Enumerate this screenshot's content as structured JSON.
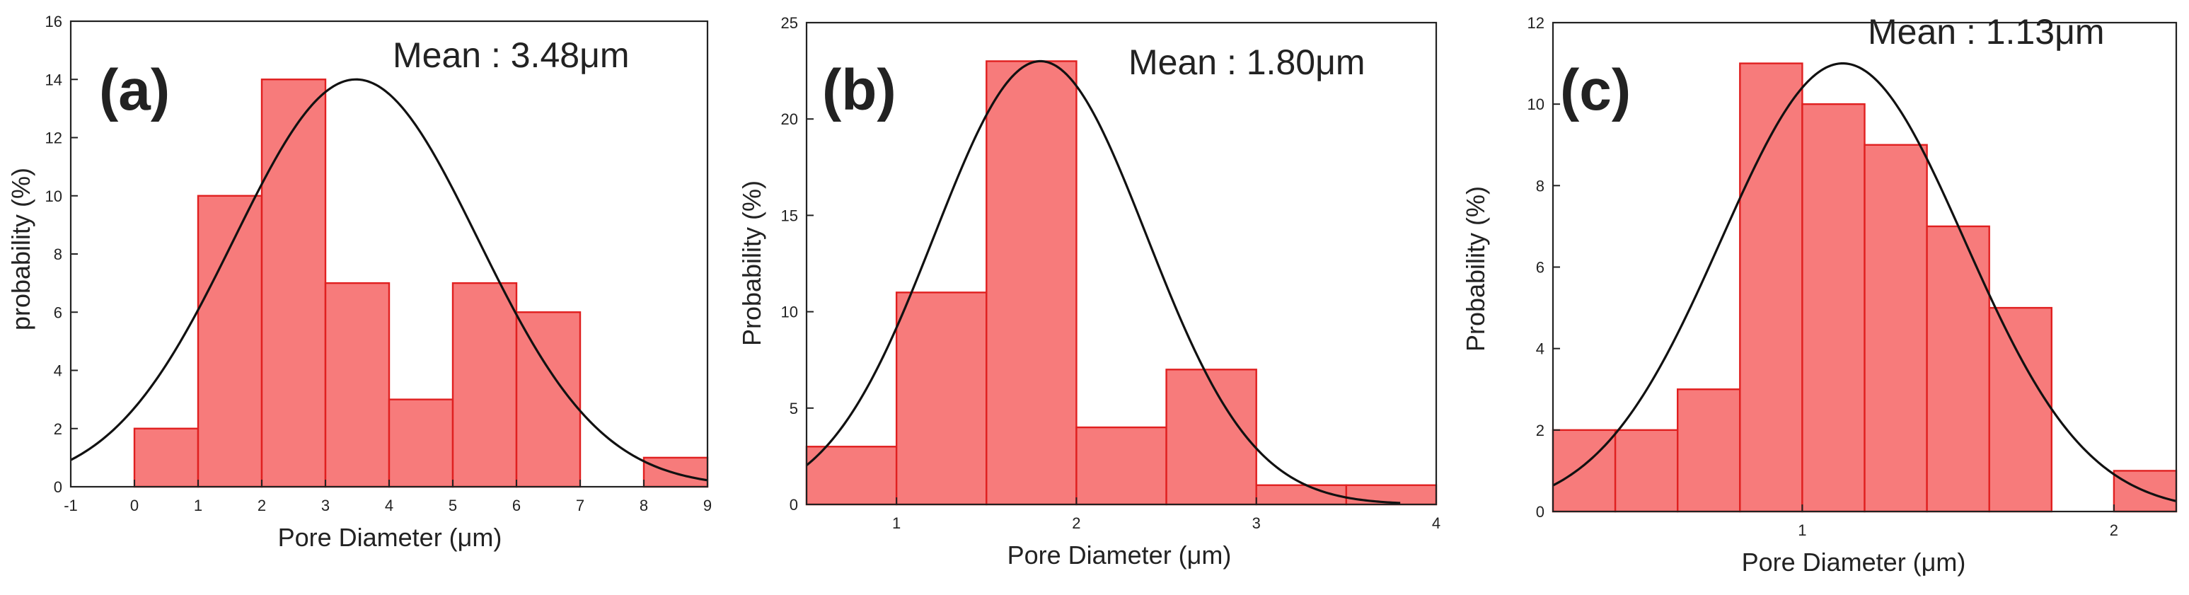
{
  "figure": {
    "description_free": true
  },
  "chart_data": [
    {
      "type": "bar",
      "panel_label": "(a)",
      "title": "Mean : 3.48μm",
      "mean": 3.48,
      "xlabel": "Pore Diameter (μm)",
      "ylabel": "probability (%)",
      "xlim": [
        -1,
        9
      ],
      "ylim": [
        0,
        16
      ],
      "xticks": [
        -1,
        0,
        1,
        2,
        3,
        4,
        5,
        6,
        7,
        8,
        9
      ],
      "yticks": [
        0,
        2,
        4,
        6,
        8,
        10,
        12,
        14,
        16
      ],
      "bins": [
        {
          "start": 0,
          "end": 1,
          "value": 2
        },
        {
          "start": 1,
          "end": 2,
          "value": 10
        },
        {
          "start": 2,
          "end": 3,
          "value": 14
        },
        {
          "start": 3,
          "end": 4,
          "value": 7
        },
        {
          "start": 4,
          "end": 5,
          "value": 3
        },
        {
          "start": 5,
          "end": 6,
          "value": 7
        },
        {
          "start": 6,
          "end": 7,
          "value": 6
        },
        {
          "start": 8,
          "end": 9,
          "value": 1
        }
      ],
      "fit": {
        "type": "gaussian",
        "mean": 3.48,
        "sigma": 1.92,
        "peak": 14,
        "x_range": [
          -1,
          9
        ]
      },
      "colors": {
        "bar_fill": "#f77b7b",
        "bar_edge": "#e02020",
        "curve": "#111111"
      }
    },
    {
      "type": "bar",
      "panel_label": "(b)",
      "title": "Mean : 1.80μm",
      "mean": 1.8,
      "xlabel": "Pore Diameter (μm)",
      "ylabel": "Probability (%)",
      "xlim": [
        0.5,
        4
      ],
      "ylim": [
        0,
        25
      ],
      "xticks": [
        1,
        2,
        3,
        4
      ],
      "yticks": [
        0,
        5,
        10,
        15,
        20,
        25
      ],
      "bins": [
        {
          "start": 0.5,
          "end": 1.0,
          "value": 3
        },
        {
          "start": 1.0,
          "end": 1.5,
          "value": 11
        },
        {
          "start": 1.5,
          "end": 2.0,
          "value": 23
        },
        {
          "start": 2.0,
          "end": 2.5,
          "value": 4
        },
        {
          "start": 2.5,
          "end": 3.0,
          "value": 7
        },
        {
          "start": 3.0,
          "end": 3.5,
          "value": 1
        },
        {
          "start": 3.5,
          "end": 4.0,
          "value": 1
        }
      ],
      "fit": {
        "type": "gaussian",
        "mean": 1.8,
        "sigma": 0.59,
        "peak": 23,
        "x_range": [
          0.5,
          3.8
        ]
      },
      "colors": {
        "bar_fill": "#f77b7b",
        "bar_edge": "#e02020",
        "curve": "#111111"
      }
    },
    {
      "type": "bar",
      "panel_label": "(c)",
      "title": "Mean : 1.13μm",
      "mean": 1.13,
      "xlabel": "Pore Diameter (μm)",
      "ylabel": "Probability (%)",
      "xlim": [
        0.2,
        2.2
      ],
      "ylim": [
        0,
        12
      ],
      "xticks": [
        1,
        2
      ],
      "yticks": [
        0,
        2,
        4,
        6,
        8,
        10,
        12
      ],
      "bins": [
        {
          "start": 0.2,
          "end": 0.4,
          "value": 2
        },
        {
          "start": 0.4,
          "end": 0.6,
          "value": 2
        },
        {
          "start": 0.6,
          "end": 0.8,
          "value": 3
        },
        {
          "start": 0.8,
          "end": 1.0,
          "value": 11
        },
        {
          "start": 1.0,
          "end": 1.2,
          "value": 10
        },
        {
          "start": 1.2,
          "end": 1.4,
          "value": 9
        },
        {
          "start": 1.4,
          "end": 1.6,
          "value": 7
        },
        {
          "start": 1.6,
          "end": 1.8,
          "value": 5
        },
        {
          "start": 2.0,
          "end": 2.2,
          "value": 1
        }
      ],
      "fit": {
        "type": "gaussian",
        "mean": 1.13,
        "sigma": 0.39,
        "peak": 11,
        "x_range": [
          0.2,
          2.2
        ]
      },
      "colors": {
        "bar_fill": "#f77b7b",
        "bar_edge": "#e02020",
        "curve": "#111111"
      }
    }
  ]
}
